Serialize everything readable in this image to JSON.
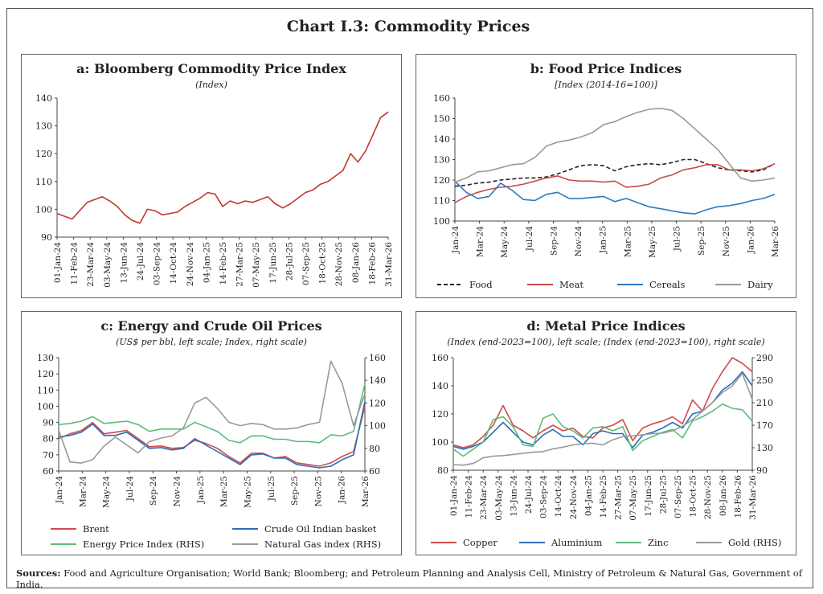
{
  "title": "Chart I.3: Commodity Prices",
  "sources_label": "Sources:",
  "sources_text": "Food and Agriculture Organisation; World Bank; Bloomberg; and Petroleum Planning and Analysis Cell, Ministry of Petroleum & Natural Gas, Government of India.",
  "chart_data": [
    {
      "id": "a",
      "type": "line",
      "title": "a: Bloomberg Commodity Price Index",
      "subtitle": "(Index)",
      "ylim": [
        90,
        140
      ],
      "yticks": [
        90,
        100,
        110,
        120,
        130,
        140
      ],
      "xlabels": [
        "01-Jan-24",
        "11-Feb-24",
        "23-Mar-24",
        "03-May-24",
        "13-Jun-24",
        "24-Jul-24",
        "03-Sep-24",
        "14-Oct-24",
        "24-Nov-24",
        "04-Jan-25",
        "14-Feb-25",
        "27-Mar-25",
        "07-May-25",
        "17-Jun-25",
        "28-Jul-25",
        "07-Sep-25",
        "18-Oct-25",
        "28-Nov-25",
        "08-Jan-26",
        "18-Feb-26",
        "31-Mar-26"
      ],
      "colors": [
        "#c0392b"
      ],
      "series": [
        {
          "values": [
            98.5,
            97.5,
            96.5,
            99.5,
            102.5,
            103.5,
            104.5,
            103,
            101,
            98,
            96,
            95,
            100,
            99.5,
            98,
            98.5,
            99,
            101,
            102.5,
            104,
            106,
            105.5,
            101,
            103,
            102,
            103,
            102.5,
            103.5,
            104.5,
            102,
            100.5,
            102,
            104,
            106,
            107,
            109,
            110,
            112,
            114,
            120,
            117,
            121,
            127,
            133,
            135
          ]
        }
      ]
    },
    {
      "id": "b",
      "type": "line",
      "title": "b: Food Price Indices",
      "subtitle": "[Index (2014-16=100)]",
      "ylim": [
        100,
        160
      ],
      "yticks": [
        100,
        110,
        120,
        130,
        140,
        150,
        160
      ],
      "xlabels": [
        "Jan-24",
        "Mar-24",
        "May-24",
        "Jul-24",
        "Sep-24",
        "Nov-24",
        "Jan-25",
        "Mar-25",
        "May-25",
        "Jul-25",
        "Sep-25",
        "Nov-25",
        "Jan-26",
        "Mar-26"
      ],
      "colors": [
        "#222222",
        "#c94a4a",
        "#2b7bbf",
        "#999999"
      ],
      "series": [
        {
          "name": "Food",
          "dashed": true,
          "values": [
            117,
            117.5,
            118.5,
            119,
            120,
            120.5,
            121,
            121,
            121.5,
            123,
            125,
            127,
            127.5,
            127,
            124.5,
            126.5,
            127.5,
            128,
            127.5,
            128.5,
            130,
            130,
            128,
            126,
            125,
            124.5,
            124,
            125,
            128
          ]
        },
        {
          "name": "Meat",
          "values": [
            109,
            112,
            114,
            115.5,
            116.5,
            117,
            118,
            119.5,
            121,
            122,
            120,
            119.5,
            119.5,
            119,
            119.5,
            116.5,
            117,
            118,
            121,
            122.5,
            125,
            126,
            127.5,
            127.5,
            125,
            125,
            124.5,
            125.5,
            128
          ]
        },
        {
          "name": "Cereals",
          "values": [
            119.5,
            114,
            111,
            112,
            118.5,
            115,
            110.5,
            110,
            113,
            114,
            111,
            111,
            111.5,
            112,
            109.5,
            111,
            109,
            107,
            106,
            105,
            104,
            103.5,
            105.5,
            107,
            107.5,
            108.5,
            110,
            111,
            113
          ]
        },
        {
          "name": "Dairy",
          "values": [
            119,
            121,
            124,
            124.5,
            126,
            127.5,
            128,
            131,
            136.5,
            138.5,
            139.5,
            141,
            143,
            147,
            148.5,
            151,
            153,
            154.5,
            155,
            154,
            150,
            145,
            140,
            135,
            128,
            121,
            119.5,
            120,
            121
          ]
        }
      ]
    },
    {
      "id": "c",
      "type": "line",
      "title": "c: Energy and Crude Oil Prices",
      "subtitle": "(US$ per bbl, left scale; Index, right scale)",
      "ylim": [
        60,
        130
      ],
      "yticks": [
        60,
        70,
        80,
        90,
        100,
        110,
        120,
        130
      ],
      "y2lim": [
        60,
        160
      ],
      "y2ticks": [
        60,
        80,
        100,
        120,
        140,
        160
      ],
      "xlabels": [
        "Jan-24",
        "Mar-24",
        "May-24",
        "Jul-24",
        "Sep-24",
        "Nov-24",
        "Jan-25",
        "Mar-25",
        "May-25",
        "Jul-25",
        "Sep-25",
        "Nov-25",
        "Jan-26",
        "Mar-26"
      ],
      "colors": [
        "#d24b4b",
        "#2d6fb7",
        "#5dbb7d",
        "#999999"
      ],
      "series": [
        {
          "name": "Brent",
          "axis": "left",
          "values": [
            80,
            83,
            85,
            90,
            83,
            84,
            85,
            80,
            75,
            75.5,
            74,
            74.5,
            79,
            77,
            74,
            69,
            65,
            71,
            71,
            68,
            69,
            65,
            64,
            63,
            65,
            69,
            72,
            100
          ]
        },
        {
          "name": "Crude Oil Indian basket",
          "axis": "left",
          "values": [
            81,
            82,
            84,
            89,
            82,
            82,
            84,
            79,
            74,
            74.5,
            73,
            74,
            80,
            76,
            72,
            68,
            64,
            70,
            70.5,
            68,
            68,
            64,
            63,
            62,
            63,
            67,
            70,
            103
          ]
        },
        {
          "name": "Energy Price Index (RHS)",
          "axis": "right",
          "values": [
            101,
            102,
            104,
            108,
            102,
            103,
            104,
            101,
            95,
            97,
            97,
            97,
            103,
            99,
            95,
            87,
            85,
            91,
            91,
            88,
            88,
            86,
            86,
            85,
            92,
            91,
            95,
            137
          ]
        },
        {
          "name": "Natural Gas index (RHS)",
          "axis": "right",
          "values": [
            96,
            68,
            67,
            70,
            82,
            90,
            83,
            76,
            86,
            89,
            91,
            98,
            120,
            125,
            115,
            103,
            100,
            102,
            101,
            97,
            97,
            98,
            101,
            103,
            157,
            137,
            100,
            128
          ]
        }
      ]
    },
    {
      "id": "d",
      "type": "line",
      "title": "d: Metal Price Indices",
      "subtitle": "(Index (end-2023=100), left scale; (Index (end-2023=100), right scale)",
      "ylim": [
        80,
        160
      ],
      "yticks": [
        80,
        100,
        120,
        140,
        160
      ],
      "y2lim": [
        90,
        290
      ],
      "y2ticks": [
        90,
        130,
        170,
        210,
        250,
        290
      ],
      "xlabels": [
        "01-Jan-24",
        "11-Feb-24",
        "23-Mar-24",
        "03-May-24",
        "13-Jun-24",
        "24-Jul-24",
        "03-Sep-24",
        "14-Oct-24",
        "24-Nov-24",
        "04-Jan-25",
        "14-Feb-25",
        "27-Mar-25",
        "07-May-25",
        "17-Jun-25",
        "28-Jul-25",
        "07-Sep-25",
        "18-Oct-25",
        "28-Nov-25",
        "08-Jan-26",
        "18-Feb-26",
        "31-Mar-26"
      ],
      "colors": [
        "#d24b4b",
        "#2d6fb7",
        "#5dbb7d",
        "#999999"
      ],
      "series": [
        {
          "name": "Copper",
          "axis": "left",
          "values": [
            98,
            96,
            98,
            104,
            112,
            126,
            112,
            108,
            103,
            108,
            112,
            108,
            110,
            104,
            103,
            110,
            112,
            116,
            101,
            110,
            113,
            115,
            118,
            113,
            130,
            122,
            138,
            150,
            160,
            156,
            150
          ]
        },
        {
          "name": "Aluminium",
          "axis": "left",
          "values": [
            97,
            95,
            97,
            100,
            107,
            114,
            107,
            100,
            98,
            105,
            109,
            104,
            104,
            98,
            106,
            108,
            106,
            106,
            96,
            105,
            107,
            110,
            114,
            110,
            120,
            122,
            128,
            137,
            142,
            150,
            140
          ]
        },
        {
          "name": "Zinc",
          "axis": "left",
          "values": [
            95,
            90,
            95,
            100,
            116,
            118,
            111,
            98,
            97,
            117,
            120,
            111,
            108,
            103,
            110,
            111,
            108,
            111,
            94,
            101,
            104,
            107,
            109,
            103,
            115,
            118,
            122,
            127,
            124,
            123,
            115
          ]
        },
        {
          "name": "Gold (RHS)",
          "axis": "right",
          "values": [
            100,
            99,
            102,
            112,
            115,
            116,
            118,
            120,
            122,
            123,
            128,
            131,
            135,
            137,
            138,
            135,
            144,
            150,
            151,
            153,
            155,
            156,
            160,
            168,
            180,
            195,
            210,
            228,
            240,
            262,
            216
          ]
        }
      ]
    }
  ]
}
